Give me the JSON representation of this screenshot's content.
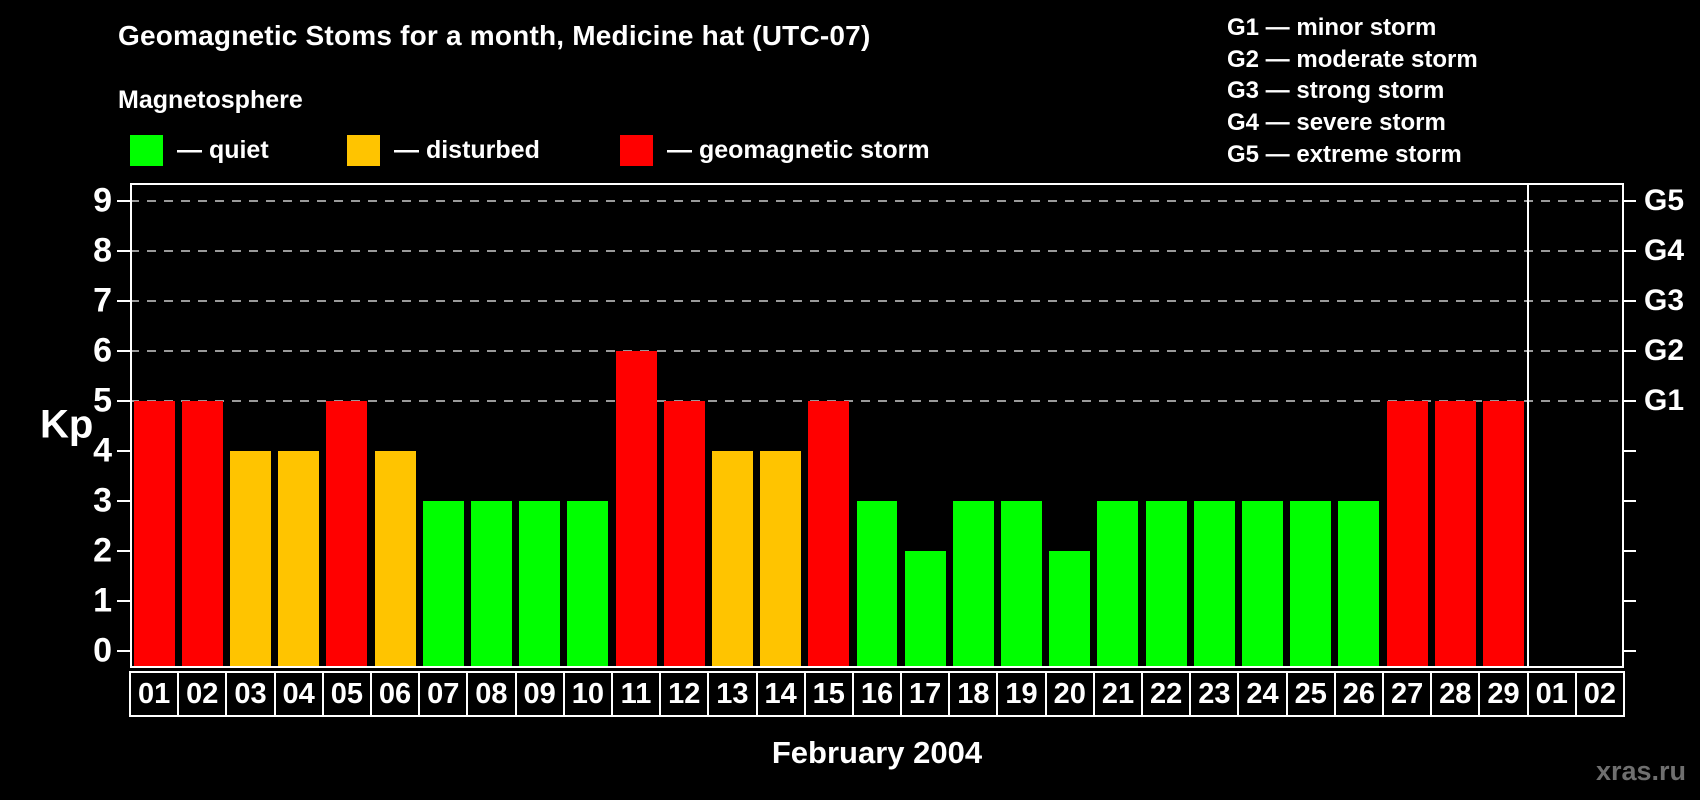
{
  "title": "Geomagnetic Stoms for a month, Medicine hat (UTC-07)",
  "watermark": "xras.ru",
  "legend": {
    "title": "Magnetosphere",
    "items": [
      {
        "name": "quiet",
        "label": "— quiet",
        "color": "#00ff00"
      },
      {
        "name": "disturbed",
        "label": "— disturbed",
        "color": "#ffc400"
      },
      {
        "name": "geomagnetic-storm",
        "label": "— geomagnetic storm",
        "color": "#ff0000"
      }
    ]
  },
  "g_legend": {
    "lines": [
      "G1 — minor storm",
      "G2 — moderate storm",
      "G3 — strong storm",
      "G4 — severe storm",
      "G5 — extreme storm"
    ]
  },
  "chart_data": {
    "type": "bar",
    "title": "Geomagnetic Stoms for a month, Medicine hat (UTC-07)",
    "xlabel": "February 2004",
    "ylabel": "Kp",
    "categories": [
      "01",
      "02",
      "03",
      "04",
      "05",
      "06",
      "07",
      "08",
      "09",
      "10",
      "11",
      "12",
      "13",
      "14",
      "15",
      "16",
      "17",
      "18",
      "19",
      "20",
      "21",
      "22",
      "23",
      "24",
      "25",
      "26",
      "27",
      "28",
      "29",
      "01",
      "02"
    ],
    "values": [
      5,
      5,
      4,
      4,
      5,
      4,
      3,
      3,
      3,
      3,
      6,
      5,
      4,
      4,
      5,
      3,
      2,
      3,
      3,
      2,
      3,
      3,
      3,
      3,
      3,
      3,
      5,
      5,
      5,
      null,
      null
    ],
    "yticks": [
      0,
      1,
      2,
      3,
      4,
      5,
      6,
      7,
      8,
      9
    ],
    "ylim": [
      -0.35,
      9.35
    ],
    "gridlines": [
      5,
      6,
      7,
      8,
      9
    ],
    "grid_on": true,
    "right_axis_labels": [
      {
        "label": "G1",
        "value": 5
      },
      {
        "label": "G2",
        "value": 6
      },
      {
        "label": "G3",
        "value": 7
      },
      {
        "label": "G4",
        "value": 8
      },
      {
        "label": "G5",
        "value": 9
      }
    ],
    "separator_after_index": 28,
    "colors": {
      "quiet": "#00ff00",
      "disturbed": "#ffc400",
      "storm": "#ff0000"
    },
    "color_rules": {
      "quiet_max": 3,
      "disturbed_value": 4,
      "storm_min": 5
    },
    "legend_position": "top-left"
  }
}
